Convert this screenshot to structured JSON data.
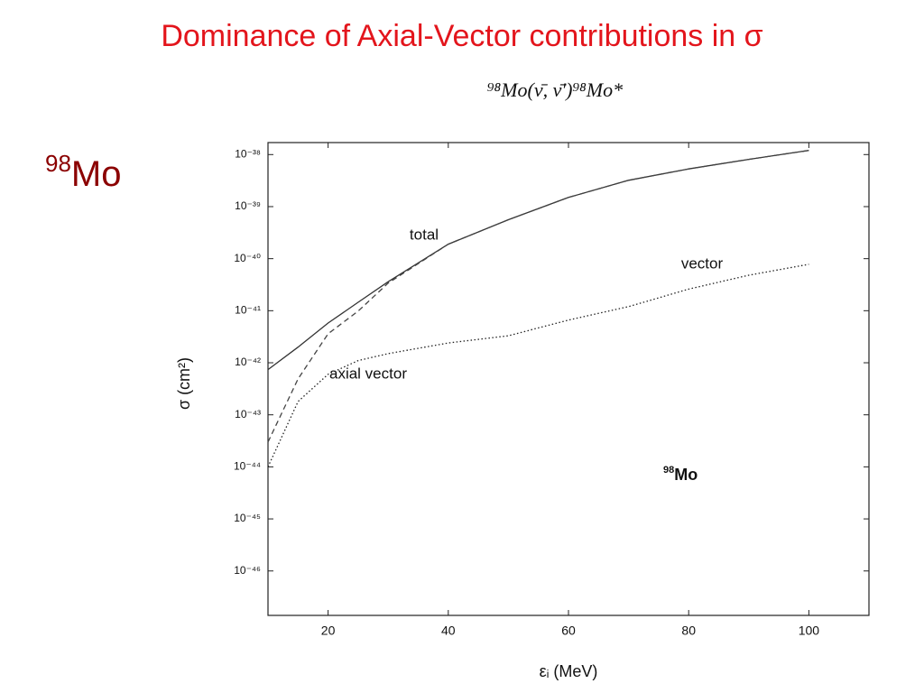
{
  "slide_title": "Dominance of Axial-Vector contributions in σ",
  "side_label": {
    "superscript": "98",
    "text": "Mo"
  },
  "chart_data": {
    "type": "line",
    "title": "⁹⁸Mo(ν̄, ν̄′)⁹⁸Mo*",
    "x_label": "εᵢ (MeV)",
    "y_label": "σ (cm²)",
    "annotations": [
      "total",
      "vector",
      "axial vector"
    ],
    "plot_label": {
      "superscript": "98",
      "text": "Mo"
    },
    "log_y": true,
    "xlim": [
      10,
      110
    ],
    "ylim": [
      1.4e-47,
      1.7e-38
    ],
    "xticks": [
      20,
      40,
      60,
      80,
      100
    ],
    "yticks": [
      {
        "value": 1e-38,
        "label": "10⁻³⁸"
      },
      {
        "value": 1e-39,
        "label": "10⁻³⁹"
      },
      {
        "value": 1e-40,
        "label": "10⁻⁴⁰"
      },
      {
        "value": 1e-41,
        "label": "10⁻⁴¹"
      },
      {
        "value": 1e-42,
        "label": "10⁻⁴²"
      },
      {
        "value": 1e-43,
        "label": "10⁻⁴³"
      },
      {
        "value": 1e-44,
        "label": "10⁻⁴⁴"
      },
      {
        "value": 1e-45,
        "label": "10⁻⁴⁵"
      },
      {
        "value": 1e-46,
        "label": "10⁻⁴⁶"
      }
    ],
    "x": [
      10,
      15,
      20,
      25,
      30,
      40,
      50,
      60,
      70,
      80,
      90,
      100
    ],
    "series": [
      {
        "name": "total",
        "color": "#333333",
        "dash": "solid",
        "values": [
          7.4e-43,
          2e-42,
          5.8e-42,
          1.45e-41,
          3.6e-41,
          1.9e-40,
          5.6e-40,
          1.5e-39,
          3.2e-39,
          5.3e-39,
          8.1e-39,
          1.2e-38
        ]
      },
      {
        "name": "axial vector",
        "color": "#444444",
        "dash": "dashed",
        "values": [
          3e-44,
          4.9e-43,
          3.6e-42,
          9.8e-42,
          3.4e-41,
          1.9e-40,
          5.6e-40,
          1.5e-39,
          3.2e-39,
          5.3e-39,
          8.1e-39,
          1.2e-38
        ]
      },
      {
        "name": "vector",
        "color": "#222222",
        "dash": "dotted",
        "values": [
          1e-44,
          1.8e-43,
          6e-43,
          1.1e-42,
          1.5e-42,
          2.4e-42,
          3.3e-42,
          6.6e-42,
          1.2e-41,
          2.6e-41,
          4.8e-41,
          7.8e-41
        ]
      }
    ]
  }
}
